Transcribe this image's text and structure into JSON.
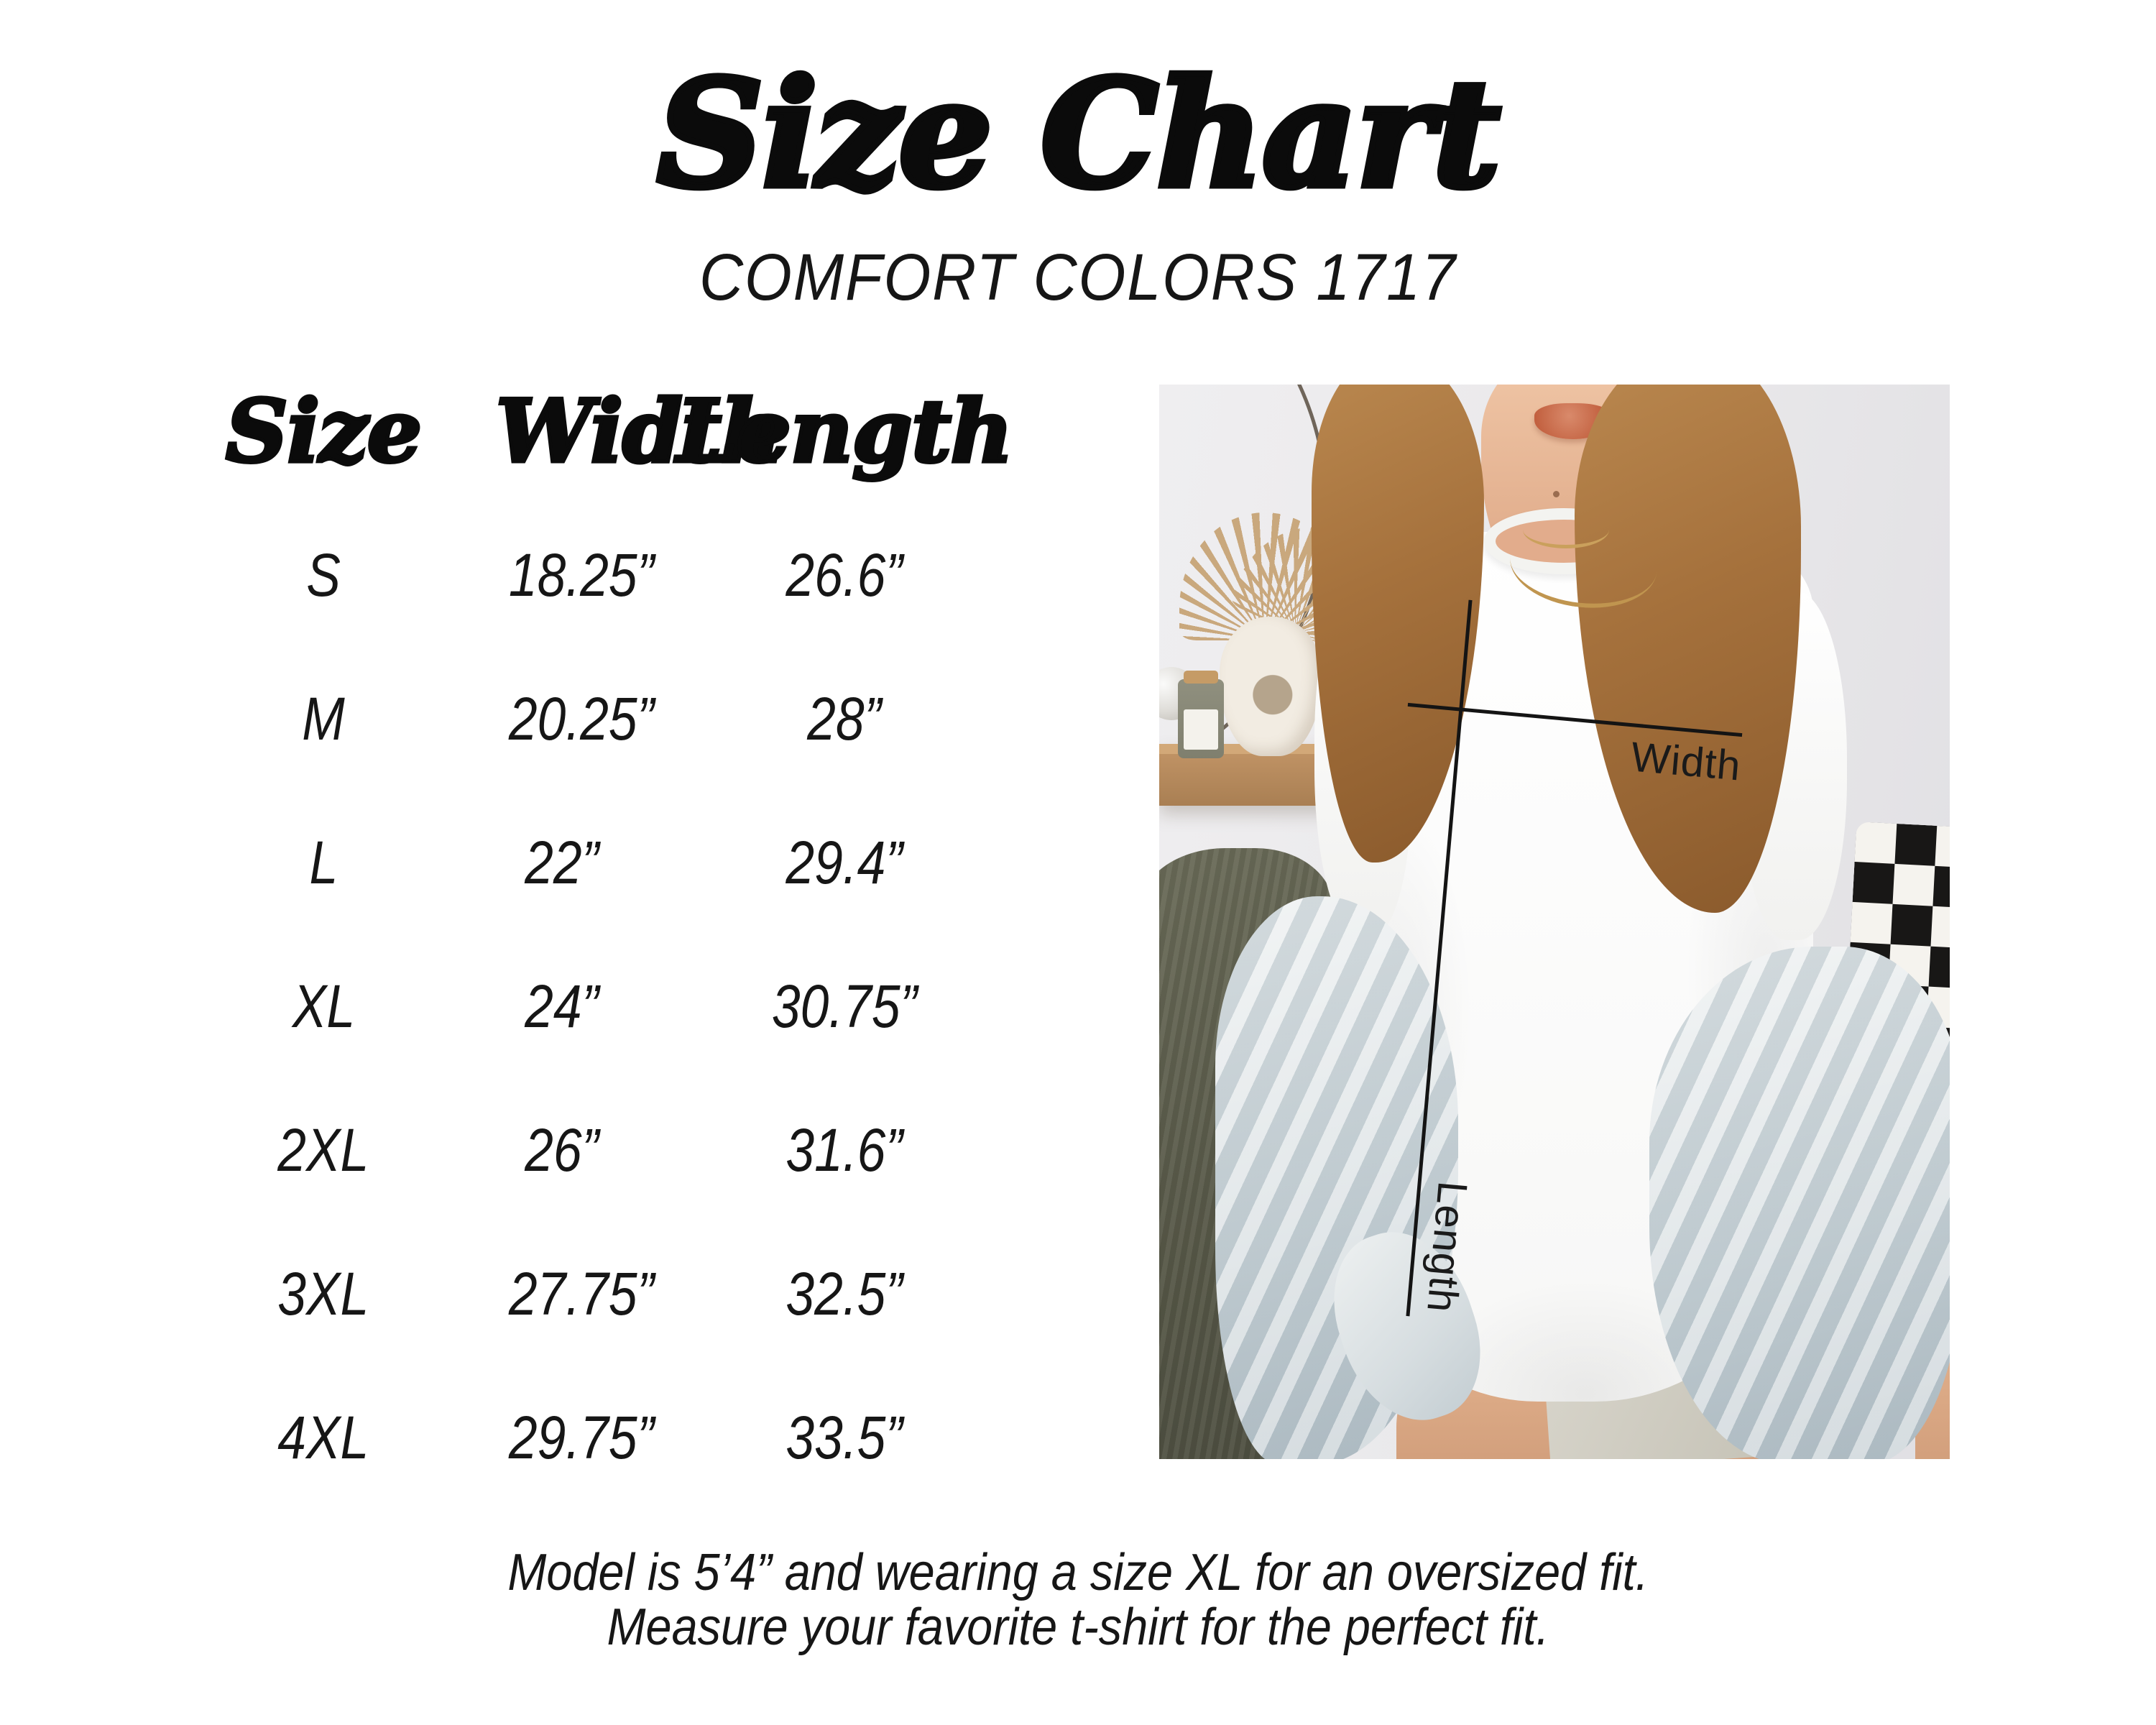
{
  "header": {
    "title": "Size Chart",
    "subtitle": "COMFORT COLORS 1717"
  },
  "size_table": {
    "columns": [
      "Size",
      "Width",
      "Length"
    ],
    "rows": [
      [
        "S",
        "18.25”",
        "26.6”"
      ],
      [
        "M",
        "20.25”",
        "28”"
      ],
      [
        "L",
        "22”",
        "29.4”"
      ],
      [
        "XL",
        "24”",
        "30.75”"
      ],
      [
        "2XL",
        "26”",
        "31.6”"
      ],
      [
        "3XL",
        "27.75”",
        "32.5”"
      ],
      [
        "4XL",
        "29.75”",
        "33.5”"
      ]
    ]
  },
  "photo": {
    "width_label": "Width",
    "length_label": "Length",
    "description": "Model in oversized white Comfort Colors 1717 t-shirt with drawn width and length measurement lines"
  },
  "footer": {
    "line1": "Model is 5’4” and wearing a size XL for an oversized fit.",
    "line2": "Measure your favorite t-shirt for the perfect fit."
  },
  "colors": {
    "text": "#111111",
    "background": "#ffffff",
    "line": "#141414",
    "wall": "#e9e8ea",
    "wood": "#bf9264",
    "denim": "#ccd5d9",
    "couch": "#565747",
    "skin": "#e2af8e",
    "hair": "#a5713c",
    "lips": "#c2603f",
    "gold": "#c0954f",
    "checker_dark": "#181716",
    "checker_light": "#f5f3ee"
  }
}
